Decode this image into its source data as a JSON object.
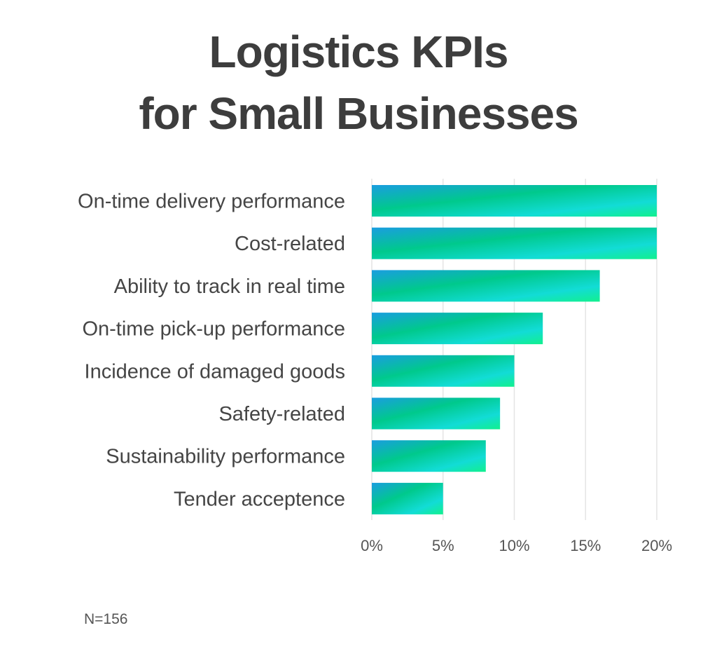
{
  "chart_data": {
    "type": "bar",
    "orientation": "horizontal",
    "title": [
      "Logistics KPIs",
      "for Small Businesses"
    ],
    "categories": [
      "On-time delivery performance",
      "Cost-related",
      "Ability to track in real time",
      "On-time pick-up performance",
      "Incidence of damaged goods",
      "Safety-related",
      "Sustainability performance",
      "Tender acceptence"
    ],
    "values": [
      20,
      20,
      16,
      12,
      10,
      9,
      8,
      5
    ],
    "xlim": [
      0,
      20
    ],
    "xticks": [
      0,
      5,
      10,
      15,
      20
    ],
    "xtick_labels": [
      "0%",
      "5%",
      "10%",
      "15%",
      "20%"
    ],
    "xlabel": "",
    "ylabel": "",
    "grid": "vertical",
    "bar_gradient": [
      "#1a9de0",
      "#00c98c",
      "#12dcd6",
      "#12f08e"
    ],
    "note": "N=156"
  }
}
